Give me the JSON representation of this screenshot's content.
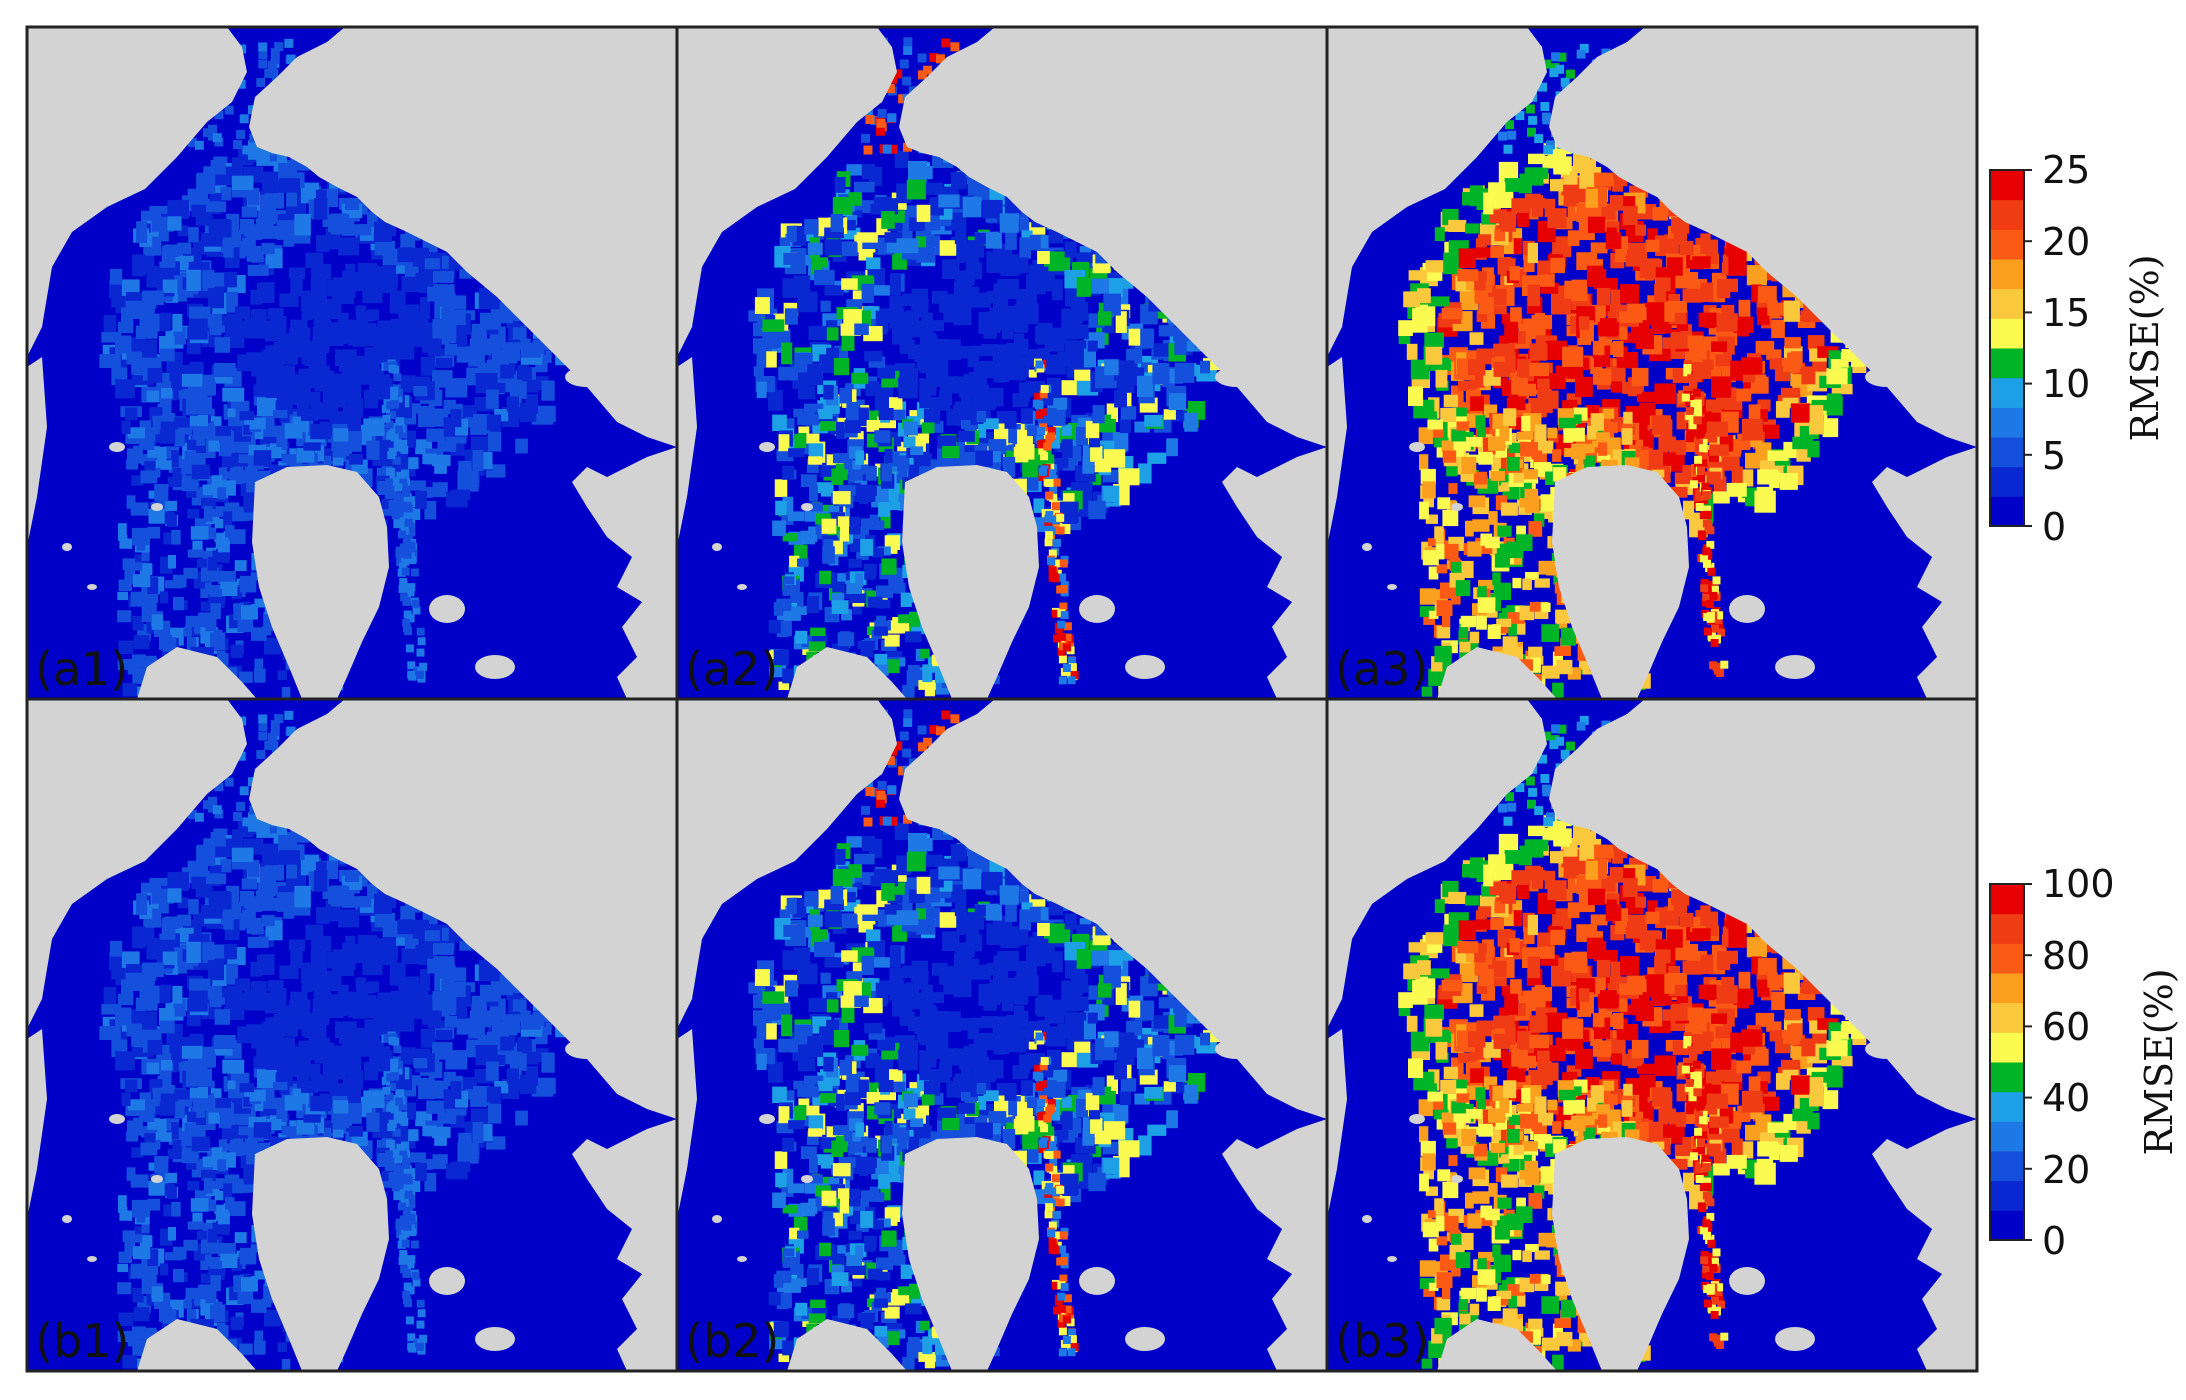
{
  "panels": [
    {
      "label": "(a1)",
      "row": 0,
      "col": 0,
      "scheme": "low"
    },
    {
      "label": "(a2)",
      "row": 0,
      "col": 1,
      "scheme": "mid"
    },
    {
      "label": "(a3)",
      "row": 0,
      "col": 2,
      "scheme": "high"
    },
    {
      "label": "(b1)",
      "row": 1,
      "col": 0,
      "scheme": "low"
    },
    {
      "label": "(b2)",
      "row": 1,
      "col": 1,
      "scheme": "mid"
    },
    {
      "label": "(b3)",
      "row": 1,
      "col": 2,
      "scheme": "high"
    }
  ],
  "colorbars": [
    {
      "title": "RMSE(%)",
      "ticks": [
        "0",
        "5",
        "10",
        "15",
        "20",
        "25"
      ],
      "range": [
        0,
        25
      ]
    },
    {
      "title": "RMSE(%)",
      "ticks": [
        "0",
        "20",
        "40",
        "60",
        "80",
        "100"
      ],
      "range": [
        0,
        100
      ]
    }
  ],
  "colors": {
    "land": "#d3d3d3",
    "ocean": "#0000c8",
    "scale": [
      "#0000c8",
      "#0a28d2",
      "#1450dc",
      "#1e78e6",
      "#1ea0e6",
      "#00b428",
      "#fafa50",
      "#fac83c",
      "#faa01e",
      "#fa5a14",
      "#f03c14",
      "#e60000"
    ]
  }
}
